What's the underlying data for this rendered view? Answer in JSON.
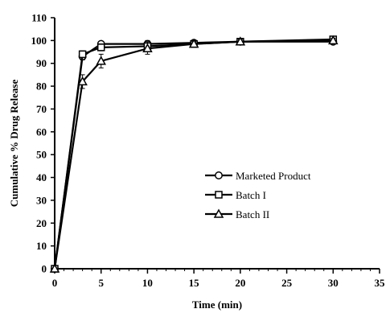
{
  "chart_data": {
    "type": "line",
    "xlabel": "Time (min)",
    "ylabel": "Cumulative % Drug Release",
    "xlim": [
      0,
      35
    ],
    "ylim": [
      0,
      110
    ],
    "xticks": [
      0,
      5,
      10,
      15,
      20,
      25,
      30,
      35
    ],
    "yticks": [
      0,
      10,
      20,
      30,
      40,
      50,
      60,
      70,
      80,
      90,
      100,
      110
    ],
    "grid": false,
    "legend_position": "lower-right",
    "series": [
      {
        "name": "Marketed Product",
        "marker": "circle",
        "x": [
          0,
          3,
          5,
          10,
          15,
          20,
          30
        ],
        "y": [
          0,
          93,
          98.5,
          98.5,
          99,
          99.5,
          99.5
        ],
        "error": [
          0,
          1.5,
          1,
          1.5,
          1,
          1,
          1
        ]
      },
      {
        "name": "Batch I",
        "marker": "square",
        "x": [
          0,
          3,
          5,
          10,
          15,
          20,
          30
        ],
        "y": [
          0,
          94,
          97,
          97.5,
          98.5,
          99.5,
          100.5
        ],
        "error": [
          0,
          1.5,
          1.5,
          2,
          1,
          1,
          1
        ]
      },
      {
        "name": "Batch II",
        "marker": "triangle",
        "x": [
          0,
          3,
          5,
          10,
          15,
          20,
          30
        ],
        "y": [
          0,
          82,
          91,
          96.5,
          98.5,
          99.5,
          100
        ],
        "error": [
          0,
          3,
          3,
          2.5,
          1,
          1,
          1
        ]
      }
    ]
  }
}
